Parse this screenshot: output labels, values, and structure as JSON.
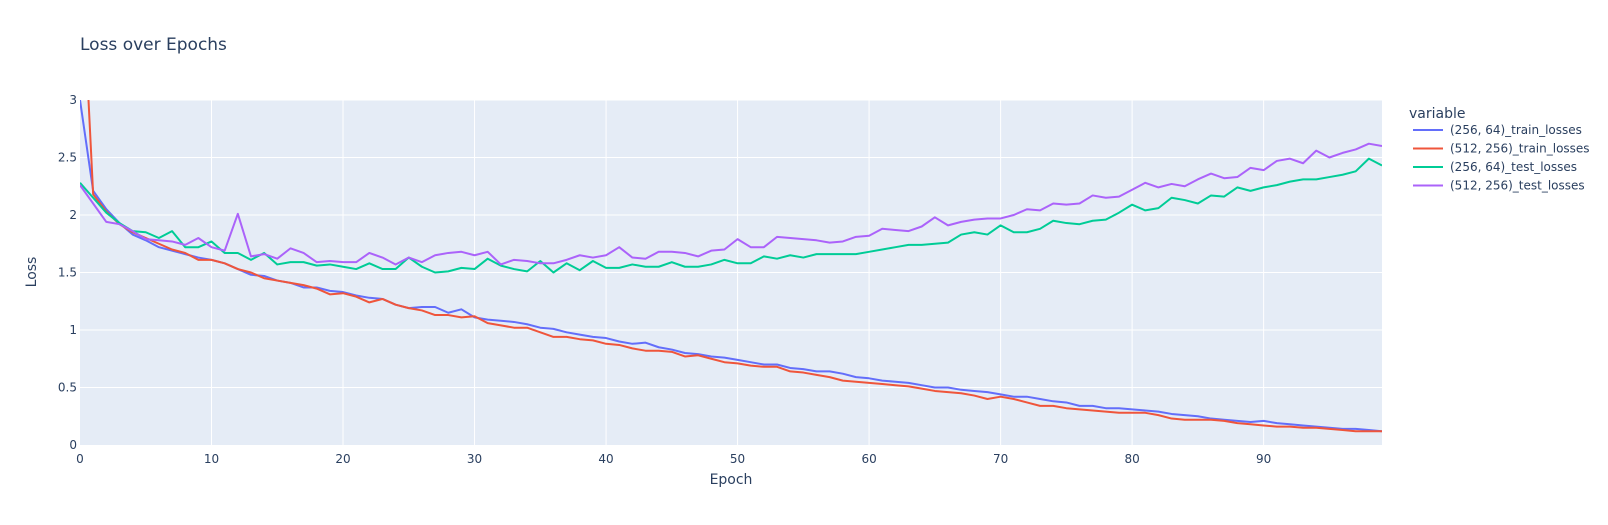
{
  "chart_data": {
    "type": "line",
    "title": "Loss over Epochs",
    "xlabel": "Epoch",
    "ylabel": "Loss",
    "xlim": [
      0,
      99
    ],
    "ylim": [
      0,
      3
    ],
    "x_ticks": [
      0,
      10,
      20,
      30,
      40,
      50,
      60,
      70,
      80,
      90
    ],
    "y_ticks": [
      0,
      0.5,
      1,
      1.5,
      2,
      2.5,
      3
    ],
    "y_tick_labels": [
      "0",
      "0.5",
      "1",
      "1.5",
      "2",
      "2.5",
      "3"
    ],
    "grid": true,
    "background": "#e5ecf6",
    "legend": {
      "title": "variable",
      "placement": "right"
    },
    "series": [
      {
        "name": "(256, 64)_train_losses",
        "color": "#636efa",
        "values": [
          3.0,
          2.21,
          2.05,
          1.93,
          1.83,
          1.78,
          1.72,
          1.69,
          1.66,
          1.63,
          1.61,
          1.58,
          1.53,
          1.48,
          1.47,
          1.43,
          1.41,
          1.37,
          1.37,
          1.34,
          1.33,
          1.3,
          1.28,
          1.27,
          1.22,
          1.19,
          1.2,
          1.2,
          1.15,
          1.18,
          1.11,
          1.09,
          1.08,
          1.07,
          1.05,
          1.02,
          1.01,
          0.98,
          0.96,
          0.94,
          0.93,
          0.9,
          0.88,
          0.89,
          0.85,
          0.83,
          0.8,
          0.79,
          0.77,
          0.76,
          0.74,
          0.72,
          0.7,
          0.7,
          0.67,
          0.66,
          0.64,
          0.64,
          0.62,
          0.59,
          0.58,
          0.56,
          0.55,
          0.54,
          0.52,
          0.5,
          0.5,
          0.48,
          0.47,
          0.46,
          0.44,
          0.42,
          0.42,
          0.4,
          0.38,
          0.37,
          0.34,
          0.34,
          0.32,
          0.32,
          0.31,
          0.3,
          0.29,
          0.27,
          0.26,
          0.25,
          0.23,
          0.22,
          0.21,
          0.2,
          0.21,
          0.19,
          0.18,
          0.17,
          0.16,
          0.15,
          0.14,
          0.14,
          0.13,
          0.12
        ]
      },
      {
        "name": "(512, 256)_train_losses",
        "color": "#ef553b",
        "values": [
          4.5,
          2.18,
          2.03,
          1.92,
          1.85,
          1.8,
          1.75,
          1.7,
          1.67,
          1.61,
          1.61,
          1.58,
          1.53,
          1.5,
          1.45,
          1.43,
          1.41,
          1.39,
          1.36,
          1.31,
          1.32,
          1.29,
          1.24,
          1.27,
          1.22,
          1.19,
          1.17,
          1.13,
          1.13,
          1.11,
          1.12,
          1.06,
          1.04,
          1.02,
          1.02,
          0.98,
          0.94,
          0.94,
          0.92,
          0.91,
          0.88,
          0.87,
          0.84,
          0.82,
          0.82,
          0.81,
          0.77,
          0.78,
          0.75,
          0.72,
          0.71,
          0.69,
          0.68,
          0.68,
          0.64,
          0.63,
          0.61,
          0.59,
          0.56,
          0.55,
          0.54,
          0.53,
          0.52,
          0.51,
          0.49,
          0.47,
          0.46,
          0.45,
          0.43,
          0.4,
          0.42,
          0.4,
          0.37,
          0.34,
          0.34,
          0.32,
          0.31,
          0.3,
          0.29,
          0.28,
          0.28,
          0.28,
          0.26,
          0.23,
          0.22,
          0.22,
          0.22,
          0.21,
          0.19,
          0.18,
          0.17,
          0.16,
          0.16,
          0.15,
          0.15,
          0.14,
          0.13,
          0.12,
          0.12,
          0.12
        ]
      },
      {
        "name": "(256, 64)_test_losses",
        "color": "#00cc96",
        "values": [
          2.28,
          2.15,
          2.02,
          1.93,
          1.86,
          1.85,
          1.8,
          1.86,
          1.72,
          1.72,
          1.77,
          1.67,
          1.67,
          1.61,
          1.67,
          1.57,
          1.59,
          1.59,
          1.56,
          1.57,
          1.55,
          1.53,
          1.58,
          1.53,
          1.53,
          1.63,
          1.55,
          1.5,
          1.51,
          1.54,
          1.53,
          1.62,
          1.56,
          1.53,
          1.51,
          1.6,
          1.5,
          1.58,
          1.52,
          1.6,
          1.54,
          1.54,
          1.57,
          1.55,
          1.55,
          1.59,
          1.55,
          1.55,
          1.57,
          1.61,
          1.58,
          1.58,
          1.64,
          1.62,
          1.65,
          1.63,
          1.66,
          1.66,
          1.66,
          1.66,
          1.68,
          1.7,
          1.72,
          1.74,
          1.74,
          1.75,
          1.76,
          1.83,
          1.85,
          1.83,
          1.91,
          1.85,
          1.85,
          1.88,
          1.95,
          1.93,
          1.92,
          1.95,
          1.96,
          2.02,
          2.09,
          2.04,
          2.06,
          2.15,
          2.13,
          2.1,
          2.17,
          2.16,
          2.24,
          2.21,
          2.24,
          2.26,
          2.29,
          2.31,
          2.31,
          2.33,
          2.35,
          2.38,
          2.49,
          2.43
        ]
      },
      {
        "name": "(512, 256)_test_losses",
        "color": "#ab63fa",
        "values": [
          2.26,
          2.1,
          1.94,
          1.92,
          1.86,
          1.79,
          1.78,
          1.77,
          1.74,
          1.8,
          1.72,
          1.69,
          2.01,
          1.64,
          1.66,
          1.62,
          1.71,
          1.67,
          1.59,
          1.6,
          1.59,
          1.59,
          1.67,
          1.63,
          1.57,
          1.63,
          1.59,
          1.65,
          1.67,
          1.68,
          1.65,
          1.68,
          1.57,
          1.61,
          1.6,
          1.58,
          1.58,
          1.61,
          1.65,
          1.63,
          1.65,
          1.72,
          1.63,
          1.62,
          1.68,
          1.68,
          1.67,
          1.64,
          1.69,
          1.7,
          1.79,
          1.72,
          1.72,
          1.81,
          1.8,
          1.79,
          1.78,
          1.76,
          1.77,
          1.81,
          1.82,
          1.88,
          1.87,
          1.86,
          1.9,
          1.98,
          1.91,
          1.94,
          1.96,
          1.97,
          1.97,
          2.0,
          2.05,
          2.04,
          2.1,
          2.09,
          2.1,
          2.17,
          2.15,
          2.16,
          2.22,
          2.28,
          2.24,
          2.27,
          2.25,
          2.31,
          2.36,
          2.32,
          2.33,
          2.41,
          2.39,
          2.47,
          2.49,
          2.45,
          2.56,
          2.5,
          2.54,
          2.57,
          2.62,
          2.6
        ]
      }
    ]
  }
}
